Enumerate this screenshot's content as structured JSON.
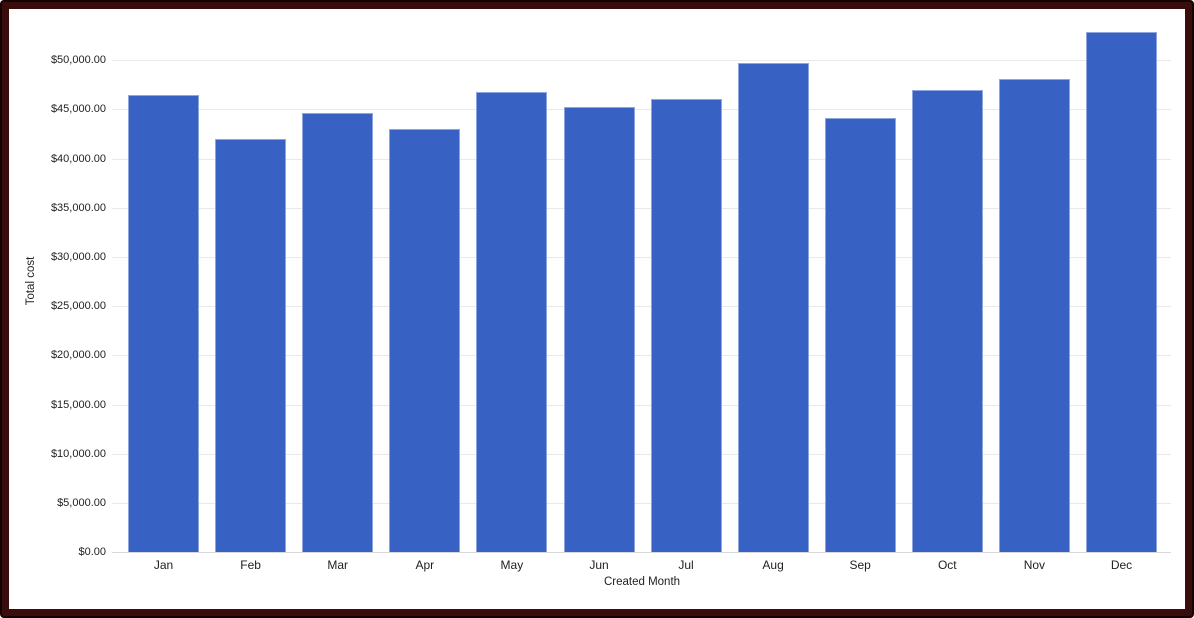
{
  "chart_data": {
    "type": "bar",
    "title": "",
    "xlabel": "Created Month",
    "ylabel": "Total cost",
    "categories": [
      "Jan",
      "Feb",
      "Mar",
      "Apr",
      "May",
      "Jun",
      "Jul",
      "Aug",
      "Sep",
      "Oct",
      "Nov",
      "Dec"
    ],
    "series": [
      {
        "name": "Total cost",
        "values": [
          46500,
          42000,
          44600,
          43000,
          46800,
          45200,
          46100,
          49700,
          44100,
          47000,
          48100,
          52900
        ]
      }
    ],
    "ylim": [
      0,
      55000
    ],
    "grid": true,
    "legend_position": "none",
    "y_ticks": [
      {
        "value": 0,
        "label": "$0.00"
      },
      {
        "value": 5000,
        "label": "$5,000.00"
      },
      {
        "value": 10000,
        "label": "$10,000.00"
      },
      {
        "value": 15000,
        "label": "$15,000.00"
      },
      {
        "value": 20000,
        "label": "$20,000.00"
      },
      {
        "value": 25000,
        "label": "$25,000.00"
      },
      {
        "value": 30000,
        "label": "$30,000.00"
      },
      {
        "value": 35000,
        "label": "$35,000.00"
      },
      {
        "value": 40000,
        "label": "$40,000.00"
      },
      {
        "value": 45000,
        "label": "$45,000.00"
      },
      {
        "value": 50000,
        "label": "$50,000.00"
      }
    ]
  },
  "colors": {
    "bar_fill": "#3762c4",
    "bar_stroke": "#8fa5de",
    "gridline": "#e9e9e9",
    "baseline": "#d8d8d8",
    "text": "#1f1f1f",
    "background": "#ffffff",
    "frame_outer": "#140202",
    "frame_inner": "#3a0d0d"
  }
}
